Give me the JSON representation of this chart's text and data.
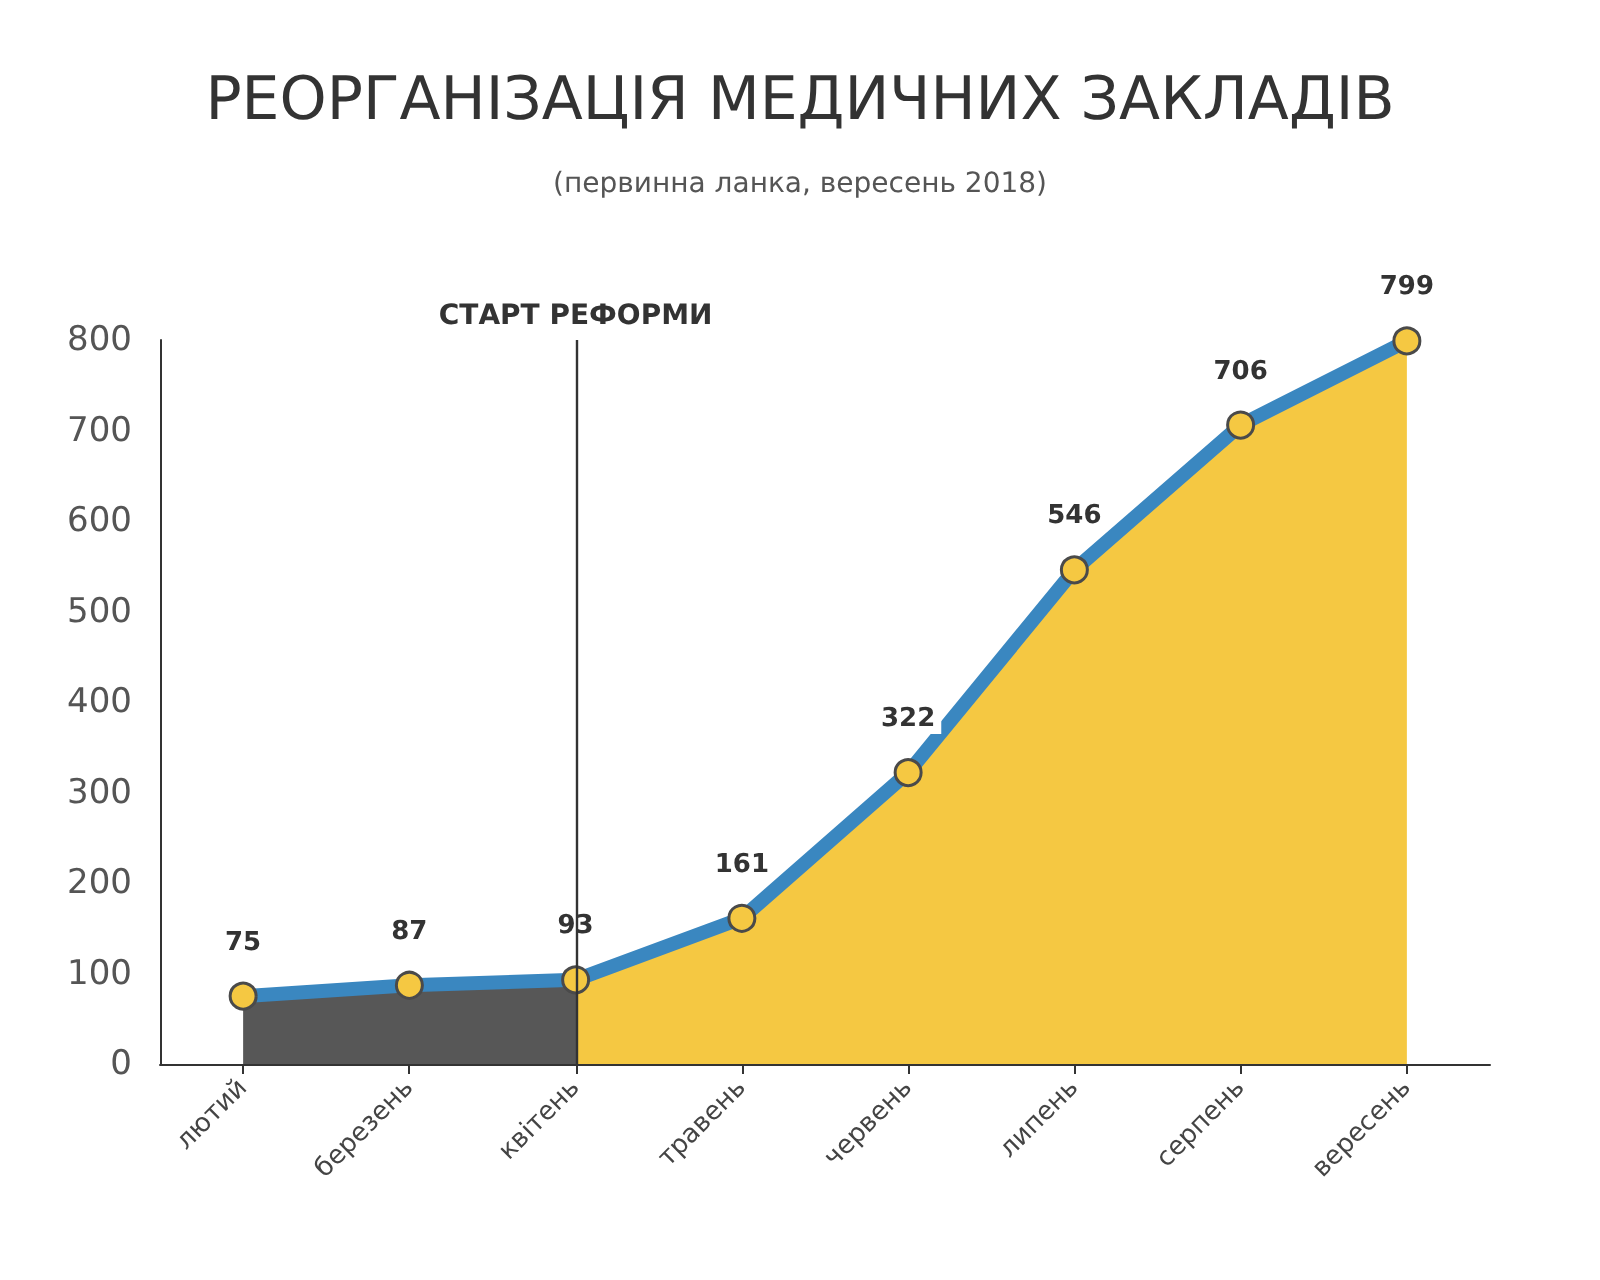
{
  "chart_data": {
    "type": "area",
    "title": "РЕОРГАНІЗАЦІЯ МЕДИЧНИХ ЗАКЛАДІВ",
    "subtitle": "(первинна ланка, вересень 2018)",
    "categories": [
      "лютий",
      "березень",
      "квітень",
      "травень",
      "червень",
      "липень",
      "серпень",
      "вересень"
    ],
    "series": [
      {
        "color": "#3a87c0",
        "values": [
          75,
          87,
          93,
          161,
          322,
          546,
          706,
          799
        ],
        "colors": [
          "#575757",
          "#575757",
          "#575757",
          "#f5c842",
          "#f5c842",
          "#f5c842",
          "#f5c842",
          "#f5c842"
        ]
      }
    ],
    "ylim": [
      0,
      800
    ],
    "yticks": [
      0,
      100,
      200,
      300,
      400,
      500,
      600,
      700,
      800
    ],
    "ref_lines": [
      {
        "axis": "x",
        "value": "квітень",
        "label": "СТАРТ РЕФОРМИ",
        "color": "#333333"
      }
    ],
    "data_labels": true,
    "grid": false,
    "marker": "circle",
    "line_style": "solid"
  }
}
